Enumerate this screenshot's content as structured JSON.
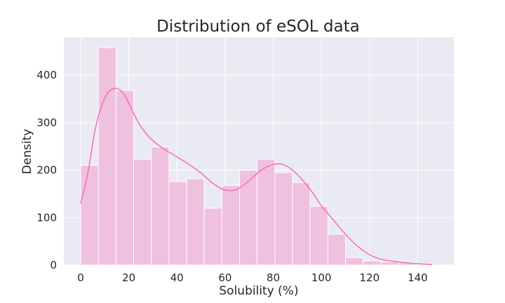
{
  "chart_data": {
    "type": "histogram",
    "title": "Distribution of eSOL data",
    "xlabel": "Solubility (%)",
    "ylabel": "Density",
    "xlim": [
      -7,
      155
    ],
    "ylim": [
      0,
      480
    ],
    "xticks": [
      0,
      20,
      40,
      60,
      80,
      100,
      120,
      140
    ],
    "yticks": [
      0,
      100,
      200,
      300,
      400
    ],
    "grid": true,
    "bin_width": 7.3,
    "bins": [
      {
        "start": 0.0,
        "end": 7.3,
        "value": 210
      },
      {
        "start": 7.3,
        "end": 14.7,
        "value": 458
      },
      {
        "start": 14.7,
        "end": 22.0,
        "value": 368
      },
      {
        "start": 22.0,
        "end": 29.3,
        "value": 223
      },
      {
        "start": 29.3,
        "end": 36.7,
        "value": 249
      },
      {
        "start": 36.7,
        "end": 44.0,
        "value": 176
      },
      {
        "start": 44.0,
        "end": 51.3,
        "value": 182
      },
      {
        "start": 51.3,
        "end": 58.7,
        "value": 120
      },
      {
        "start": 58.7,
        "end": 66.0,
        "value": 168
      },
      {
        "start": 66.0,
        "end": 73.3,
        "value": 200
      },
      {
        "start": 73.3,
        "end": 80.7,
        "value": 223
      },
      {
        "start": 80.7,
        "end": 88.0,
        "value": 195
      },
      {
        "start": 88.0,
        "end": 95.3,
        "value": 174
      },
      {
        "start": 95.3,
        "end": 102.7,
        "value": 124
      },
      {
        "start": 102.7,
        "end": 110.0,
        "value": 65
      },
      {
        "start": 110.0,
        "end": 117.3,
        "value": 16
      },
      {
        "start": 117.3,
        "end": 124.7,
        "value": 9
      },
      {
        "start": 124.7,
        "end": 132.0,
        "value": 7
      },
      {
        "start": 132.0,
        "end": 139.3,
        "value": 5
      }
    ],
    "kde": {
      "x": [
        0,
        3,
        6,
        9,
        12,
        15,
        18,
        21,
        24,
        27,
        30,
        33,
        36,
        40,
        45,
        50,
        55,
        60,
        65,
        70,
        75,
        80,
        84,
        88,
        92,
        96,
        100,
        105,
        110,
        115,
        120,
        125,
        130,
        135,
        140,
        146
      ],
      "y": [
        130,
        195,
        285,
        340,
        367,
        372,
        360,
        330,
        300,
        278,
        262,
        250,
        240,
        228,
        212,
        194,
        172,
        158,
        160,
        178,
        200,
        212,
        212,
        200,
        180,
        155,
        125,
        95,
        65,
        40,
        22,
        12,
        8,
        5,
        3,
        1
      ]
    },
    "bar_color": "#f0c1de",
    "bar_edge_color": "#ffffff",
    "line_color": "#f66eb0",
    "plot_bg_color": "#eaeaf2",
    "grid_color": "#ffffff"
  }
}
